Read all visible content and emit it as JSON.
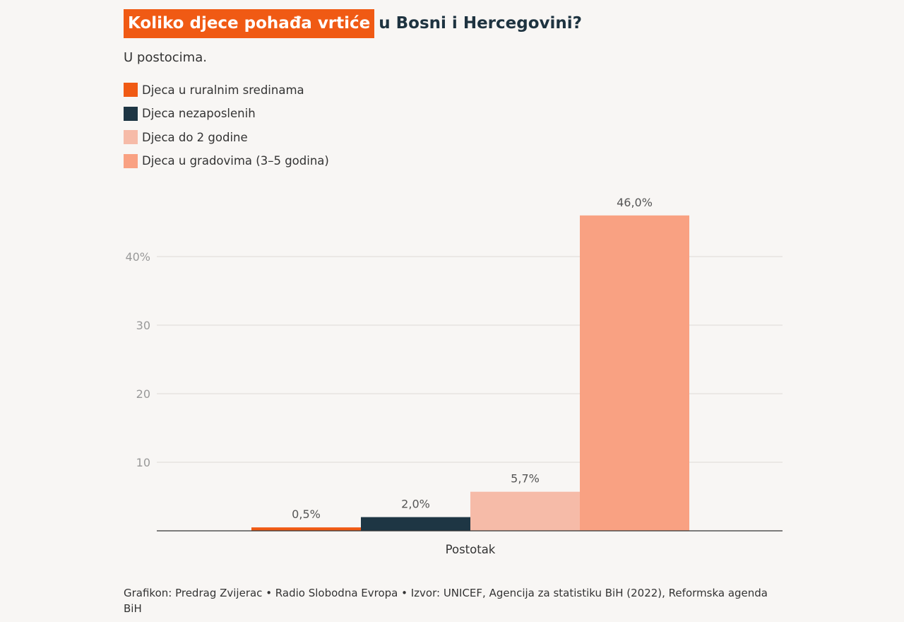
{
  "title": {
    "highlight": "Koliko djece pohađa vrtiće",
    "rest": "u Bosni i Hercegovini?"
  },
  "subtitle": "U postocima.",
  "colors": {
    "rural": "#f05a14",
    "unemployed": "#1e3644",
    "under2": "#f6bba8",
    "cities": "#f9a182",
    "grid": "#dedad6",
    "axis": "#333333",
    "tick_label": "#999999"
  },
  "chart_data": {
    "type": "bar",
    "categories": [
      "Postotak"
    ],
    "series": [
      {
        "name": "Djeca u ruralnim sredinama",
        "values": [
          0.5
        ],
        "label": "0,5%",
        "color": "#f05a14"
      },
      {
        "name": "Djeca nezaposlenih",
        "values": [
          2.0
        ],
        "label": "2,0%",
        "color": "#1e3644"
      },
      {
        "name": "Djeca do 2 godine",
        "values": [
          5.7
        ],
        "label": "5,7%",
        "color": "#f6bba8"
      },
      {
        "name": "Djeca u gradovima (3–5 godina)",
        "values": [
          46.0
        ],
        "label": "46,0%",
        "color": "#f9a182"
      }
    ],
    "title": "Koliko djece pohađa vrtiće u Bosni i Hercegovini?",
    "subtitle": "U postocima.",
    "xlabel": "Postotak",
    "ylabel": "",
    "ylim": [
      0,
      50
    ],
    "yticks": [
      10,
      20,
      30,
      40
    ],
    "ytick_labels": [
      "10",
      "20",
      "30",
      "40%"
    ],
    "grid": true,
    "legend_position": "top-left"
  },
  "footer": "Grafikon: Predrag Zvijerac • Radio Slobodna Evropa • Izvor: UNICEF, Agencija za statistiku BiH (2022), Reformska agenda BiH"
}
